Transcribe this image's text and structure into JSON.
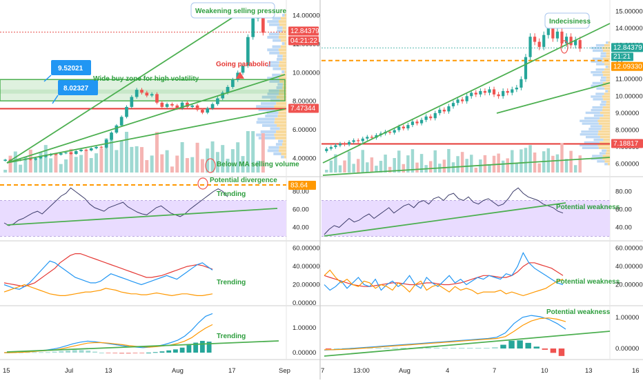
{
  "colors": {
    "up": "#26a69a",
    "down": "#ef5350",
    "green_line": "#4caf50",
    "red_line": "#e53935",
    "orange_line": "#ff9800",
    "blue_line": "#2196f3",
    "rsi_band": "#e9dcff",
    "blue_tag": "#2196f3",
    "red_tag": "#ef5350",
    "orange_tag": "#ff9800",
    "teal_tag": "#26a69a",
    "annotation_green": "#2e9e3e",
    "annotation_red": "#e53935"
  },
  "chart_data": [
    {
      "panel": "left",
      "type": "candlestick",
      "price_axis": {
        "ticks": [
          "14.00000",
          "12.00000",
          "10.00000",
          "8.00000",
          "6.00000",
          "4.00000"
        ],
        "ylim": [
          3.0,
          15.0
        ],
        "scale": "linear"
      },
      "time_axis": {
        "ticks": [
          "15",
          "Jul",
          "13",
          "Aug",
          "17",
          "Sep"
        ]
      },
      "price_tags": {
        "last_price": "12.84379",
        "countdown": "04:21:22",
        "level": "7.47344"
      },
      "level_boxes": [
        "9.52021",
        "8.02327"
      ],
      "buy_zone": {
        "low": 8.02327,
        "high": 9.52021
      },
      "horizontal_level": 7.47344,
      "close_series": [
        3.9,
        3.8,
        3.85,
        3.9,
        3.95,
        3.9,
        4.0,
        4.1,
        4.2,
        4.3,
        4.25,
        4.35,
        4.4,
        4.3,
        4.5,
        4.6,
        4.55,
        4.7,
        4.8,
        4.75,
        5.3,
        5.8,
        6.3,
        6.9,
        7.6,
        8.3,
        8.8,
        8.6,
        8.4,
        8.5,
        7.9,
        7.6,
        7.8,
        7.7,
        7.5,
        7.9,
        7.6,
        7.7,
        7.4,
        7.2,
        7.5,
        7.8,
        8.2,
        8.6,
        9.0,
        9.5,
        10.0,
        10.5,
        12.5,
        13.8,
        14.1,
        12.8
      ],
      "annotations": [
        "Weakening selling pressure",
        "Wide buy zone for high volatility",
        "Going parabolic!",
        "Below MA selling volume",
        "Potential divergence",
        "Trending",
        "Trending",
        "Trending"
      ],
      "rsi": {
        "ticks": [
          "80.00",
          "60.00",
          "40.00"
        ],
        "level_tag": "83.64",
        "values": [
          45,
          42,
          44,
          48,
          50,
          53,
          56,
          58,
          55,
          60,
          65,
          70,
          75,
          78,
          84,
          80,
          76,
          72,
          66,
          62,
          60,
          58,
          62,
          64,
          66,
          68,
          63,
          60,
          57,
          55,
          54,
          58,
          62,
          64,
          60,
          56,
          54,
          52,
          55,
          60,
          64,
          68,
          72,
          76,
          80,
          83,
          80,
          74
        ]
      },
      "dmi": {
        "ticks": [
          "60.00000",
          "40.00000",
          "20.00000",
          "0.00000"
        ],
        "adx": [
          22,
          21,
          20,
          19,
          18,
          20,
          22,
          26,
          30,
          34,
          38,
          44,
          48,
          52,
          54,
          54,
          52,
          50,
          48,
          46,
          44,
          42,
          40,
          38,
          36,
          34,
          32,
          30,
          28,
          28,
          29,
          30,
          32,
          34,
          36,
          38,
          40,
          41,
          42,
          41,
          39,
          37
        ],
        "plus_di": [
          20,
          18,
          16,
          15,
          18,
          22,
          28,
          34,
          40,
          46,
          44,
          40,
          36,
          32,
          28,
          26,
          24,
          22,
          22,
          24,
          28,
          32,
          30,
          28,
          26,
          24,
          22,
          20,
          22,
          24,
          26,
          28,
          30,
          28,
          26,
          30,
          34,
          38,
          42,
          44,
          40,
          36
        ],
        "minus_di": [
          12,
          14,
          16,
          18,
          20,
          18,
          16,
          14,
          12,
          10,
          9,
          8,
          8,
          9,
          10,
          11,
          12,
          12,
          13,
          14,
          16,
          15,
          14,
          12,
          11,
          10,
          10,
          9,
          9,
          10,
          11,
          10,
          9,
          8,
          9,
          10,
          10,
          9,
          8,
          8,
          9,
          10
        ]
      },
      "macd": {
        "ticks": [
          "1.00000",
          "0.00000"
        ],
        "macd_line": [
          0.0,
          0.01,
          0.02,
          0.04,
          0.06,
          0.08,
          0.1,
          0.14,
          0.2,
          0.28,
          0.36,
          0.42,
          0.46,
          0.44,
          0.4,
          0.36,
          0.32,
          0.28,
          0.24,
          0.22,
          0.2,
          0.22,
          0.26,
          0.32,
          0.4,
          0.5,
          0.66,
          0.9,
          1.2,
          1.45,
          1.56
        ],
        "signal_line": [
          0.0,
          0.0,
          0.01,
          0.02,
          0.04,
          0.06,
          0.08,
          0.1,
          0.14,
          0.2,
          0.26,
          0.32,
          0.38,
          0.4,
          0.4,
          0.38,
          0.35,
          0.32,
          0.28,
          0.25,
          0.23,
          0.22,
          0.24,
          0.27,
          0.31,
          0.37,
          0.46,
          0.6,
          0.8,
          0.98,
          1.12
        ],
        "histogram": [
          0.0,
          0.01,
          0.01,
          0.02,
          0.02,
          0.02,
          0.02,
          0.04,
          0.06,
          0.08,
          0.1,
          0.1,
          0.08,
          0.04,
          0.0,
          -0.02,
          -0.03,
          -0.04,
          -0.04,
          -0.03,
          -0.03,
          0.0,
          0.02,
          0.05,
          0.09,
          0.13,
          0.2,
          0.3,
          0.4,
          0.47,
          0.44
        ]
      }
    },
    {
      "panel": "right",
      "type": "candlestick",
      "price_axis": {
        "ticks": [
          "15.00000",
          "14.00000",
          "13.00000",
          "12",
          "11.00000",
          "10.00000",
          "9.00000",
          "8.00000",
          "7.00000",
          "6.00000"
        ],
        "ylim": [
          5.5,
          15.5
        ],
        "scale": "linear"
      },
      "time_axis": {
        "ticks": [
          "7",
          "13:00",
          "Aug",
          "4",
          "7",
          "10",
          "13",
          "16"
        ]
      },
      "price_tags": {
        "last_price": "12.84379",
        "countdown": "21:21",
        "prev": "12.09330",
        "level": "7.18817"
      },
      "horizontal_level": 7.18817,
      "close_series": [
        6.9,
        7.0,
        7.1,
        7.2,
        7.15,
        7.3,
        7.4,
        7.35,
        7.5,
        7.6,
        7.55,
        7.7,
        7.8,
        7.9,
        7.85,
        8.0,
        8.2,
        8.1,
        8.3,
        8.5,
        8.4,
        8.6,
        8.8,
        8.7,
        9.0,
        9.2,
        9.1,
        9.4,
        9.6,
        9.8,
        9.7,
        10.0,
        10.2,
        10.1,
        10.3,
        10.2,
        10.4,
        10.1,
        10.0,
        10.3,
        10.2,
        10.4,
        10.5,
        11.0,
        12.3,
        13.5,
        13.2,
        12.9,
        13.6,
        14.1,
        13.4,
        13.8,
        13.1,
        13.5,
        13.0,
        13.3,
        12.8
      ],
      "annotations": [
        "Indecisiness",
        "Potential weakness",
        "Potential weakness",
        "Potential weakness"
      ],
      "rsi": {
        "ticks": [
          "80.00",
          "60.00",
          "40.00"
        ],
        "values": [
          32,
          38,
          42,
          40,
          45,
          50,
          46,
          48,
          52,
          55,
          50,
          54,
          58,
          62,
          56,
          60,
          64,
          66,
          62,
          68,
          70,
          66,
          72,
          74,
          70,
          76,
          78,
          72,
          70,
          74,
          68,
          66,
          70,
          72,
          68,
          64,
          66,
          72,
          80,
          84,
          78,
          74,
          72,
          70,
          66,
          64,
          62,
          58,
          56
        ]
      },
      "dmi": {
        "ticks": [
          "60.00000",
          "40.00000",
          "20.00000"
        ],
        "adx": [
          30,
          28,
          26,
          24,
          22,
          20,
          19,
          18,
          18,
          19,
          20,
          21,
          22,
          22,
          21,
          20,
          20,
          21,
          22,
          22,
          21,
          20,
          20,
          21,
          22,
          24,
          26,
          28,
          30,
          30,
          29,
          28,
          28,
          30,
          34,
          40,
          44,
          44,
          42,
          40,
          38,
          34,
          30
        ],
        "plus_di": [
          20,
          14,
          18,
          24,
          16,
          22,
          28,
          20,
          18,
          26,
          14,
          20,
          24,
          18,
          22,
          30,
          20,
          16,
          28,
          22,
          18,
          24,
          30,
          22,
          26,
          20,
          24,
          28,
          26,
          30,
          28,
          26,
          32,
          30,
          40,
          55,
          44,
          38,
          34,
          30,
          26,
          22,
          20
        ],
        "minus_di": [
          30,
          36,
          28,
          22,
          26,
          20,
          18,
          24,
          22,
          16,
          20,
          18,
          14,
          22,
          18,
          12,
          20,
          24,
          14,
          18,
          20,
          16,
          12,
          18,
          14,
          16,
          14,
          10,
          12,
          12,
          12,
          14,
          10,
          12,
          10,
          8,
          10,
          12,
          14,
          16,
          20,
          24,
          26
        ]
      },
      "macd": {
        "ticks": [
          "1.00000",
          "0.00000"
        ],
        "macd_line": [
          -0.05,
          -0.04,
          -0.02,
          0.0,
          0.02,
          0.04,
          0.06,
          0.08,
          0.1,
          0.12,
          0.14,
          0.16,
          0.18,
          0.2,
          0.22,
          0.24,
          0.26,
          0.28,
          0.3,
          0.32,
          0.36,
          0.5,
          0.8,
          1.0,
          1.06,
          1.02,
          0.94,
          0.8,
          0.62
        ],
        "signal_line": [
          -0.04,
          -0.04,
          -0.03,
          -0.02,
          0.0,
          0.02,
          0.04,
          0.06,
          0.08,
          0.1,
          0.12,
          0.14,
          0.16,
          0.18,
          0.2,
          0.22,
          0.24,
          0.26,
          0.28,
          0.3,
          0.32,
          0.38,
          0.55,
          0.74,
          0.88,
          0.96,
          0.98,
          0.94,
          0.86
        ],
        "histogram": [
          -0.01,
          0.0,
          0.01,
          0.02,
          0.02,
          0.02,
          0.02,
          0.02,
          0.02,
          0.02,
          0.02,
          0.02,
          0.02,
          0.02,
          0.02,
          0.02,
          0.02,
          0.02,
          0.02,
          0.02,
          0.04,
          0.12,
          0.25,
          0.26,
          0.18,
          0.06,
          -0.04,
          -0.14,
          -0.24
        ]
      }
    }
  ]
}
